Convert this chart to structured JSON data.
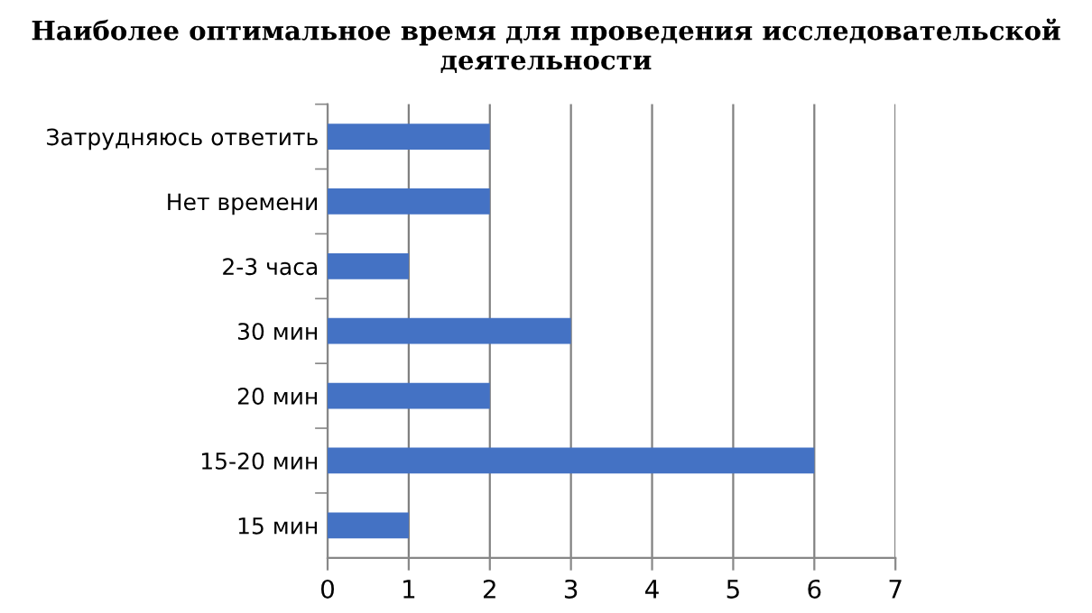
{
  "chart_data": {
    "type": "bar",
    "orientation": "horizontal",
    "title": "Наиболее оптимальное время для проведения исследовательской деятельности",
    "categories": [
      "Затрудняюсь ответить",
      "Нет времени",
      "2-3 часа",
      "30 мин",
      "20 мин",
      "15-20 мин",
      "15 мин"
    ],
    "values": [
      2,
      2,
      1,
      3,
      2,
      6,
      1
    ],
    "color": "#4472c4",
    "xlim": [
      0,
      7
    ],
    "xticks": [
      0,
      1,
      2,
      3,
      4,
      5,
      6,
      7
    ],
    "grid": "x",
    "legend": false
  }
}
